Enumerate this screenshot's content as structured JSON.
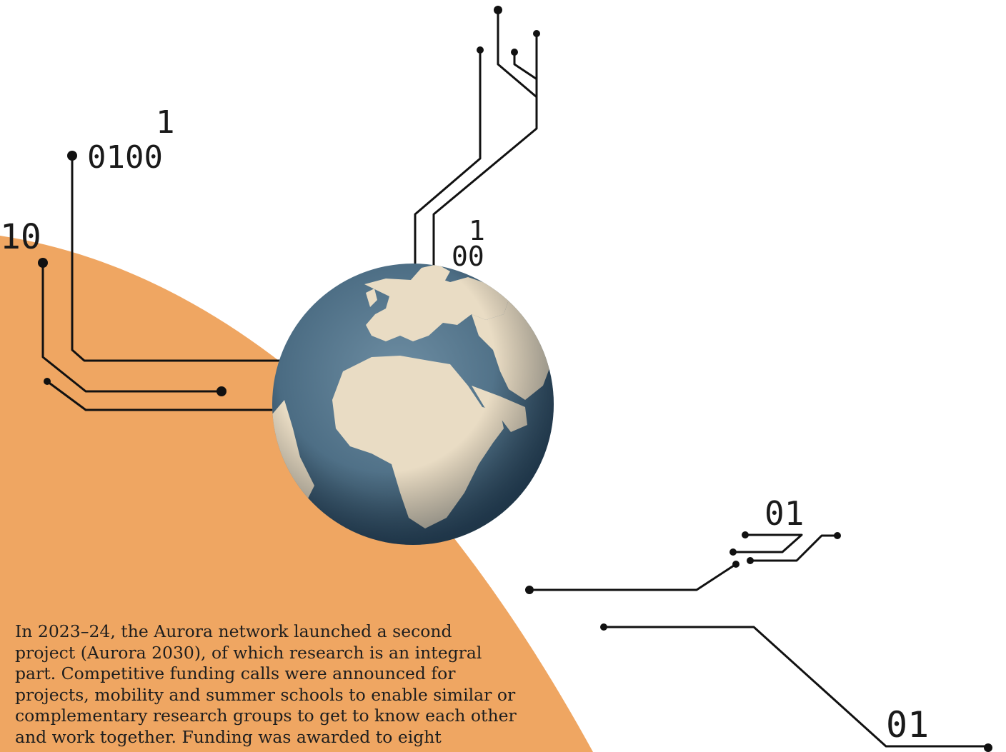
{
  "colors": {
    "background": "#ffffff",
    "accent_arc": "#efa662",
    "ink": "#111111",
    "ocean": "#4d6f86",
    "land": "#e9dcc4"
  },
  "binary_labels": {
    "top_left_sup": "1",
    "top_left": "0100",
    "left": "10",
    "center_sup": "1",
    "center": "00",
    "right_mid": "01",
    "bottom_right": "01"
  },
  "body": {
    "lines": [
      "In 2023–24, the Aurora network launched a second",
      "project (Aurora 2030), of which research is an integral",
      "part. Competitive funding calls were announced for",
      "projects, mobility and summer schools to enable similar or",
      "complementary research groups to get to know each other",
      "and work together. Funding was awarded to eight"
    ]
  },
  "illustration": {
    "globe_icon": "globe-earth-icon",
    "circuit_icon": "circuit-lines-icon"
  }
}
